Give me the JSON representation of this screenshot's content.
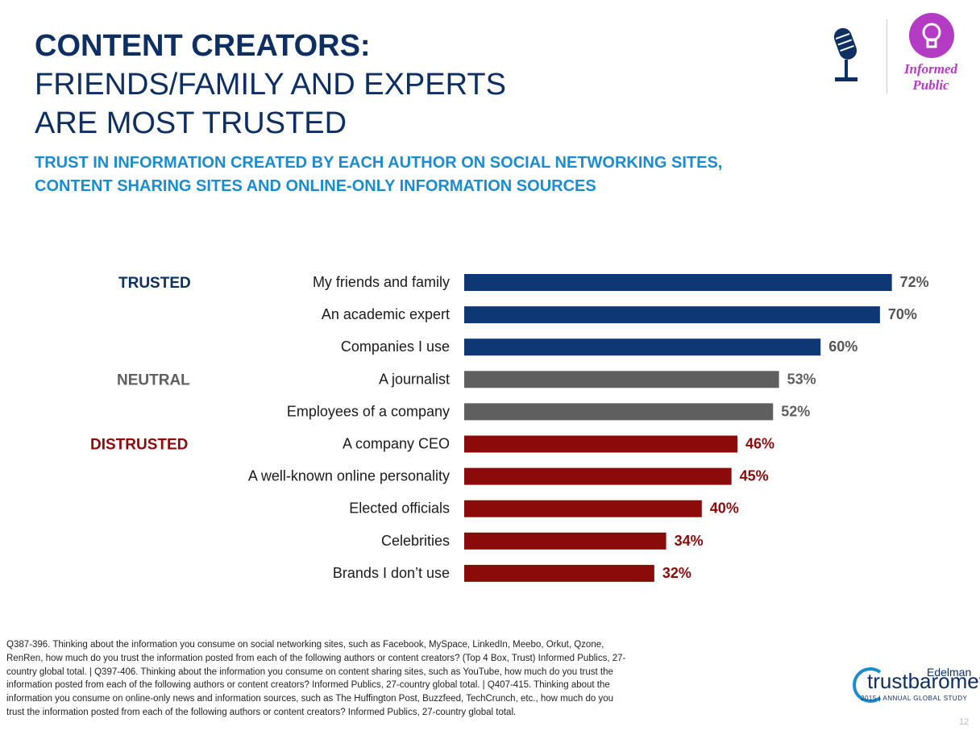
{
  "title": {
    "line1": "CONTENT CREATORS:",
    "line2": "FRIENDS/FAMILY AND EXPERTS",
    "line3": "ARE MOST TRUSTED"
  },
  "subtitle": "TRUST IN INFORMATION CREATED BY EACH AUTHOR ON SOCIAL NETWORKING SITES, CONTENT SHARING SITES AND ONLINE-ONLY INFORMATION SOURCES",
  "badge": {
    "label_line1": "Informed",
    "label_line2": "Public",
    "icon": "lightbulb-icon",
    "mic_icon": "microphone-icon",
    "color": "#b43cc4"
  },
  "colors": {
    "trusted": "#0e3873",
    "neutral": "#5f5f5f",
    "distrusted": "#8b0a0a",
    "title": "#0e2f62",
    "subtitle": "#1b8ccf"
  },
  "chart_data": {
    "type": "bar",
    "orientation": "horizontal",
    "groups": [
      {
        "name": "TRUSTED",
        "start": 0,
        "count": 3
      },
      {
        "name": "NEUTRAL",
        "start": 3,
        "count": 2
      },
      {
        "name": "DISTRUSTED",
        "start": 5,
        "count": 5
      }
    ],
    "categories": [
      "My friends and family",
      "An academic expert",
      "Companies I use",
      "A journalist",
      "Employees of a company",
      "A company CEO",
      "A well-known online personality",
      "Elected officials",
      "Celebrities",
      "Brands I don’t use"
    ],
    "values": [
      72,
      70,
      60,
      53,
      52,
      46,
      45,
      40,
      34,
      32
    ],
    "value_labels": [
      "72%",
      "70%",
      "60%",
      "53%",
      "52%",
      "46%",
      "45%",
      "40%",
      "34%",
      "32%"
    ],
    "xlim": [
      0,
      100
    ],
    "grid": false
  },
  "footnote": "Q387-396. Thinking about the information you consume on social networking sites, such as Facebook, MySpace, LinkedIn, Meebo, Orkut, Qzone, RenRen, how much do you trust the information posted from each of the following authors or content creators? (Top 4 Box, Trust) Informed Publics, 27-country global total. | Q397-406. Thinking about the information you consume on content sharing sites, such as YouTube, how much do you trust the information posted from each of the following authors or content creators? Informed Publics, 27-country global total. | Q407-415. Thinking about the information you consume on online-only news and information sources, such as The Huffington Post, Buzzfeed, TechCrunch, etc., how much do you trust the information posted from each of the following authors or content creators? Informed Publics, 27-country global total.",
  "logo": {
    "brand": "Edelman",
    "word": "trustbarometer",
    "tag": "2015 | ANNUAL GLOBAL STUDY"
  },
  "page_number": "12"
}
